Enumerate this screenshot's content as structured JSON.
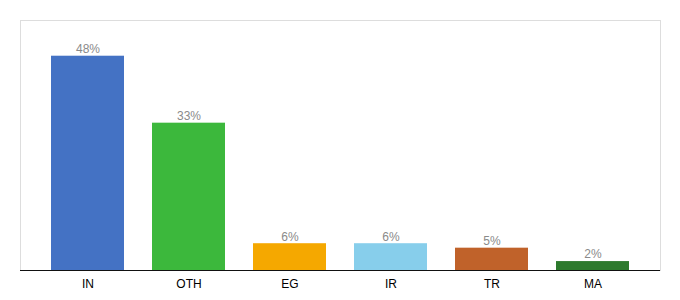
{
  "chart_data": {
    "type": "bar",
    "categories": [
      "IN",
      "OTH",
      "EG",
      "IR",
      "TR",
      "MA"
    ],
    "values": [
      48,
      33,
      6,
      6,
      5,
      2
    ],
    "value_labels": [
      "48%",
      "33%",
      "6%",
      "6%",
      "5%",
      "2%"
    ],
    "colors": [
      "#4472C4",
      "#3CB83C",
      "#F5A800",
      "#87CEEB",
      "#C0622A",
      "#2D7A2D"
    ],
    "ylim": [
      0,
      56
    ],
    "data_labels": true,
    "tick_labels": "x",
    "grid": false
  }
}
